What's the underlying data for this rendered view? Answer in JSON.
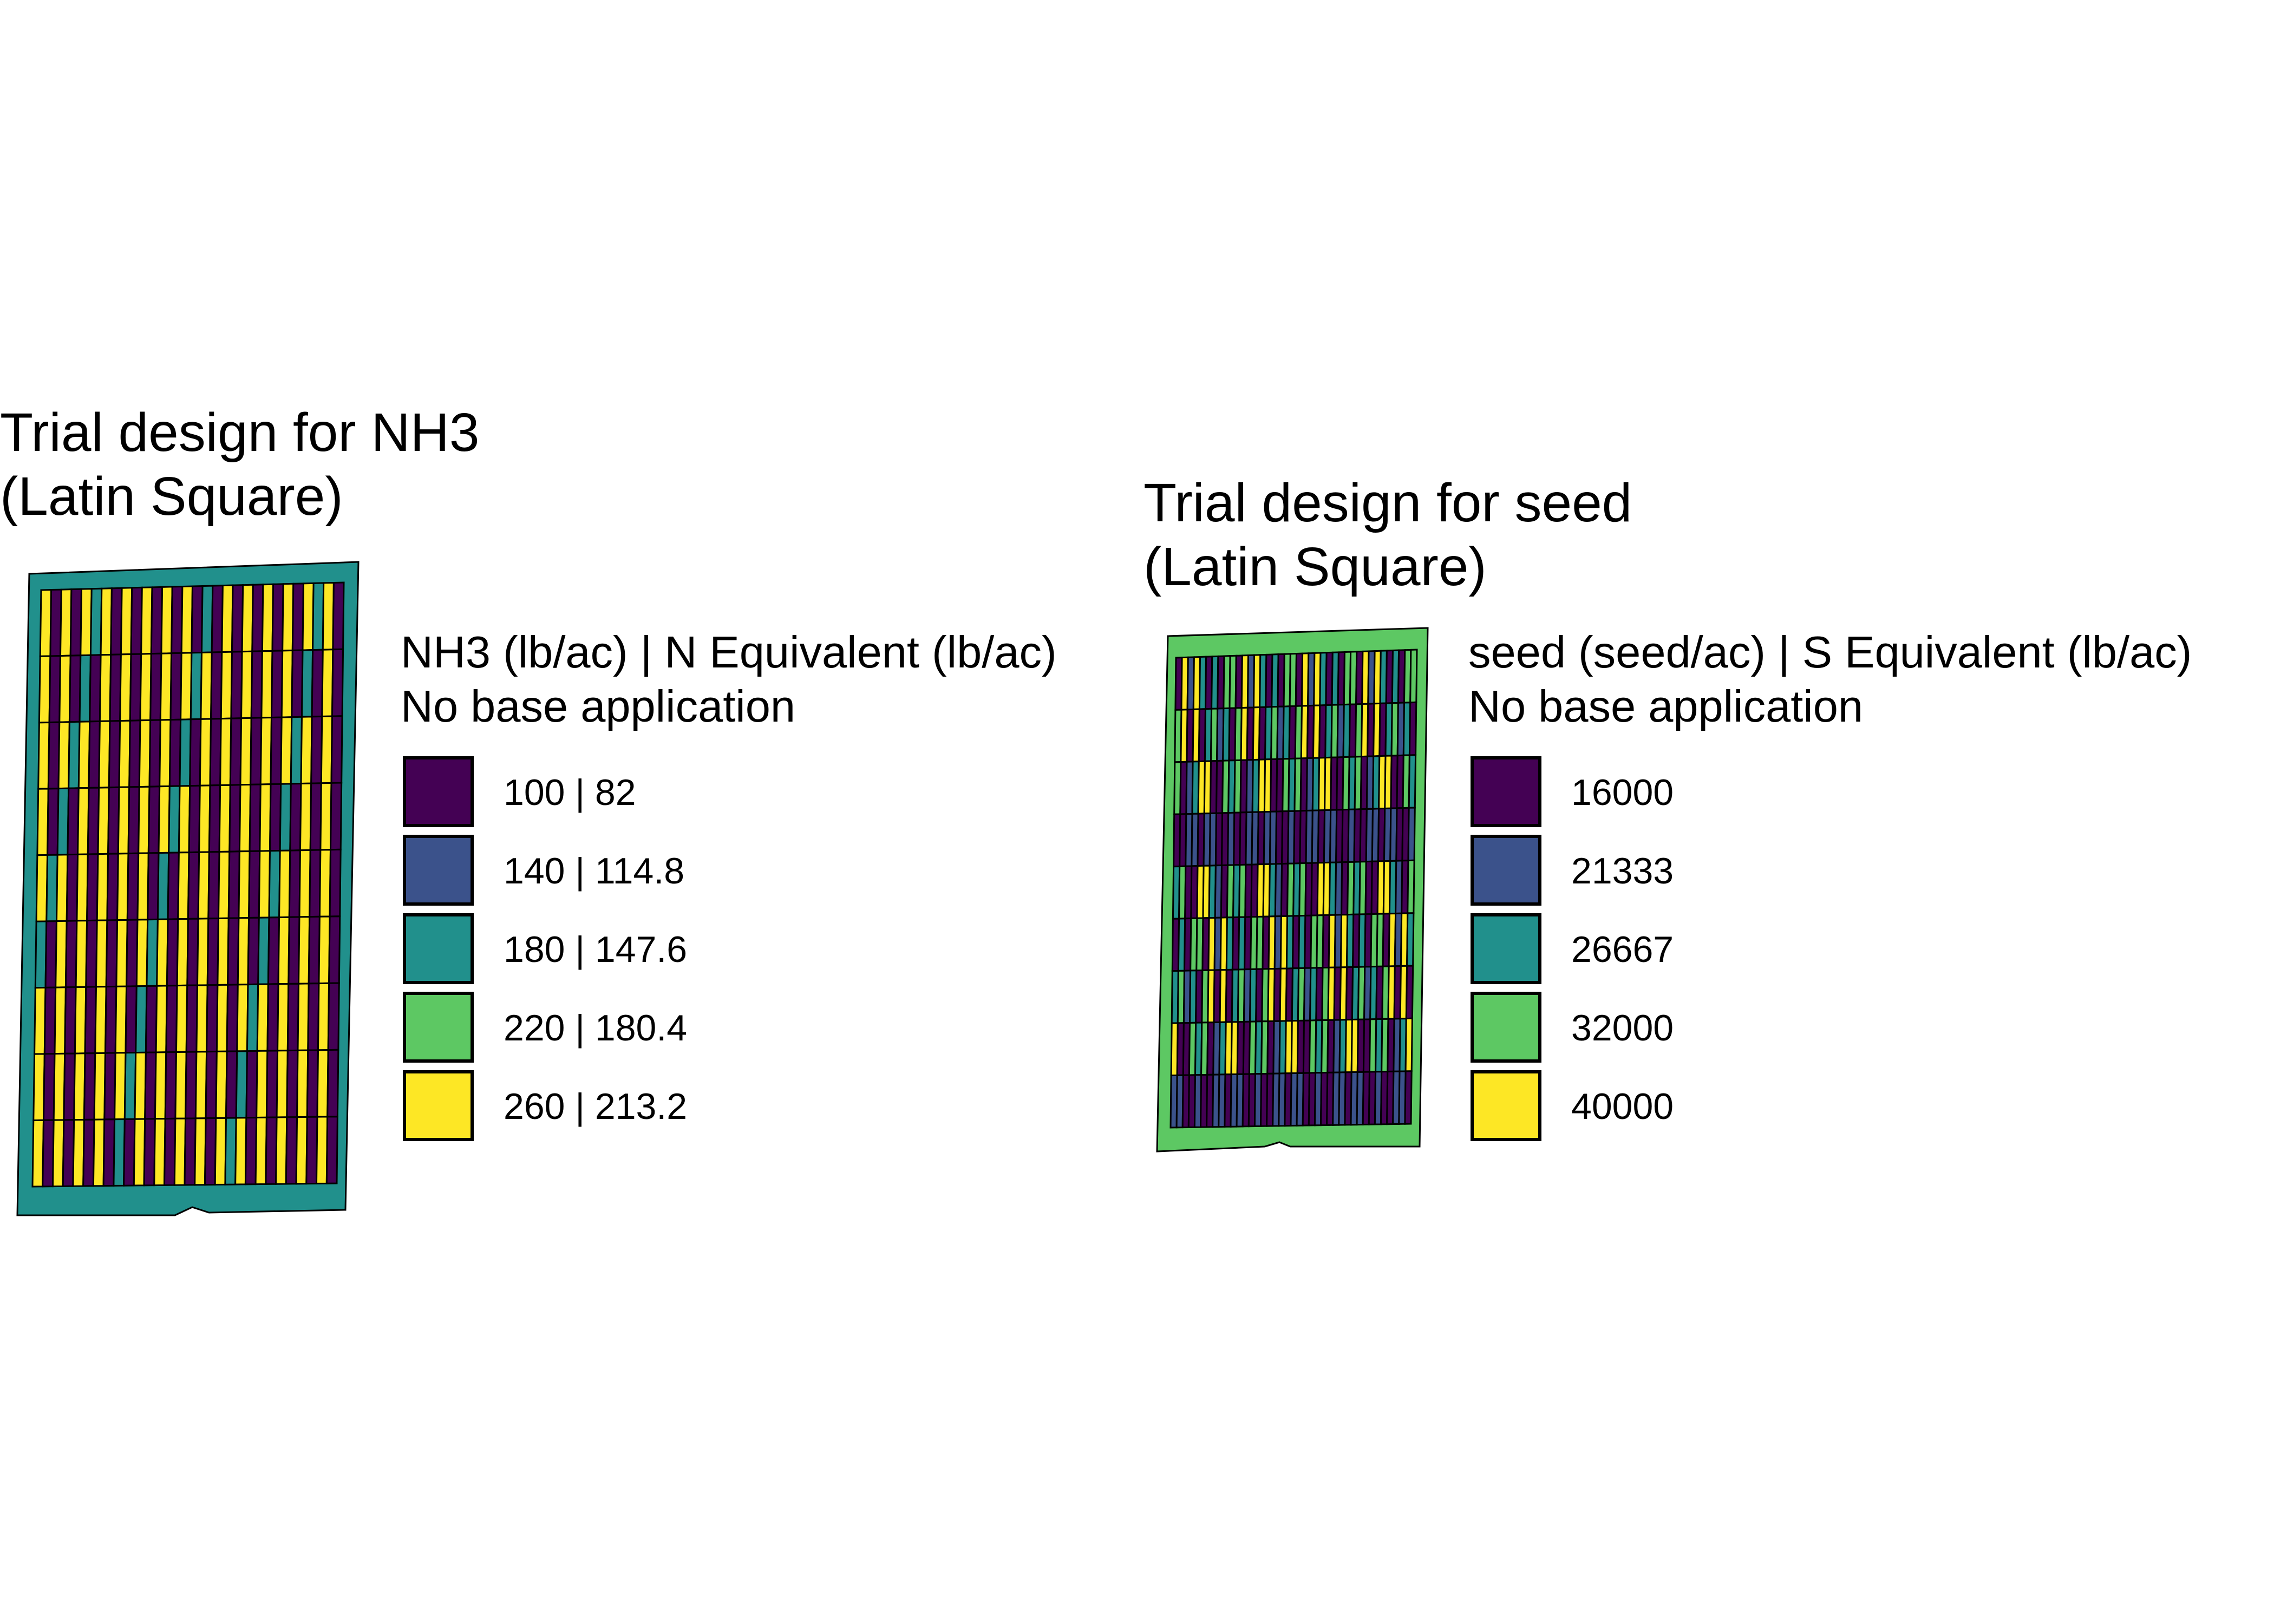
{
  "panels": [
    {
      "title_line1": "Trial design for NH3",
      "title_line2": "(Latin Square)",
      "legend_title_line1": "NH3 (lb/ac) | N Equivalent (lb/ac)",
      "legend_title_line2": "No base application",
      "background_color": "#21908C",
      "legend_items": [
        {
          "label": "100 | 82",
          "color": "#440154"
        },
        {
          "label": "140 | 114.8",
          "color": "#3B528B"
        },
        {
          "label": "180 | 147.6",
          "color": "#21908C"
        },
        {
          "label": "220 | 180.4",
          "color": "#5DC863"
        },
        {
          "label": "260 | 213.2",
          "color": "#FDE725"
        }
      ],
      "pattern": "regular"
    },
    {
      "title_line1": "Trial design for seed",
      "title_line2": "(Latin Square)",
      "legend_title_line1": "seed (seed/ac) | S Equivalent (lb/ac)",
      "legend_title_line2": "No base application",
      "background_color": "#5DC863",
      "legend_items": [
        {
          "label": "16000",
          "color": "#440154"
        },
        {
          "label": "21333",
          "color": "#3B528B"
        },
        {
          "label": "26667",
          "color": "#21908C"
        },
        {
          "label": "32000",
          "color": "#5DC863"
        },
        {
          "label": "40000",
          "color": "#FDE725"
        }
      ],
      "pattern": "mixed"
    }
  ]
}
